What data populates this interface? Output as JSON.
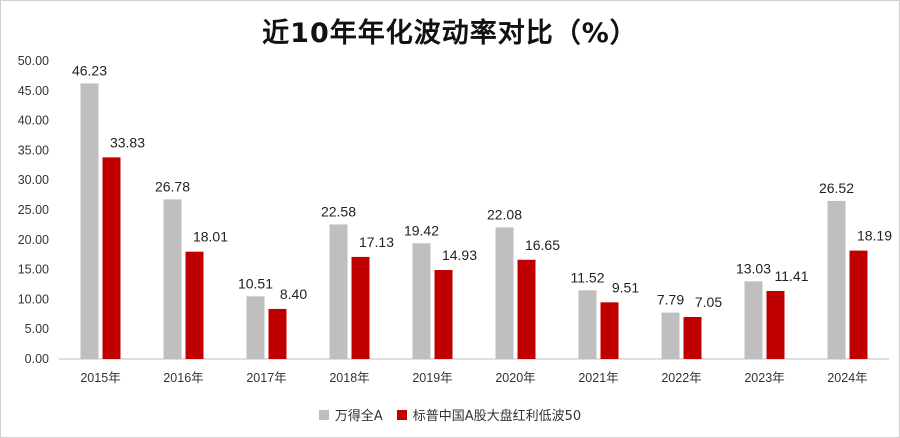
{
  "chart_data": {
    "type": "bar",
    "title": "近10年年化波动率对比（%）",
    "categories": [
      "2015年",
      "2016年",
      "2017年",
      "2018年",
      "2019年",
      "2020年",
      "2021年",
      "2022年",
      "2023年",
      "2024年"
    ],
    "series": [
      {
        "name": "万得全A",
        "color": "#bfbfbf",
        "values": [
          46.23,
          26.78,
          10.51,
          22.58,
          19.42,
          22.08,
          11.52,
          7.79,
          13.03,
          26.52
        ],
        "labels": [
          "46.23",
          "26.78",
          "10.51",
          "22.58",
          "19.42",
          "22.08",
          "11.52",
          "7.79",
          "13.03",
          "26.52"
        ]
      },
      {
        "name": "标普中国A股大盘红利低波50",
        "color": "#c00000",
        "values": [
          33.83,
          18.01,
          8.4,
          17.13,
          14.93,
          16.65,
          9.51,
          7.05,
          11.41,
          18.19
        ],
        "labels": [
          "33.83",
          "18.01",
          "8.40",
          "17.13",
          "14.93",
          "16.65",
          "9.51",
          "7.05",
          "11.41",
          "18.19"
        ]
      }
    ],
    "y_ticks": [
      "0.00",
      "5.00",
      "10.00",
      "15.00",
      "20.00",
      "25.00",
      "30.00",
      "35.00",
      "40.00",
      "45.00",
      "50.00"
    ],
    "ylim": [
      0,
      50
    ],
    "legend_position": "bottom",
    "grid": false
  }
}
